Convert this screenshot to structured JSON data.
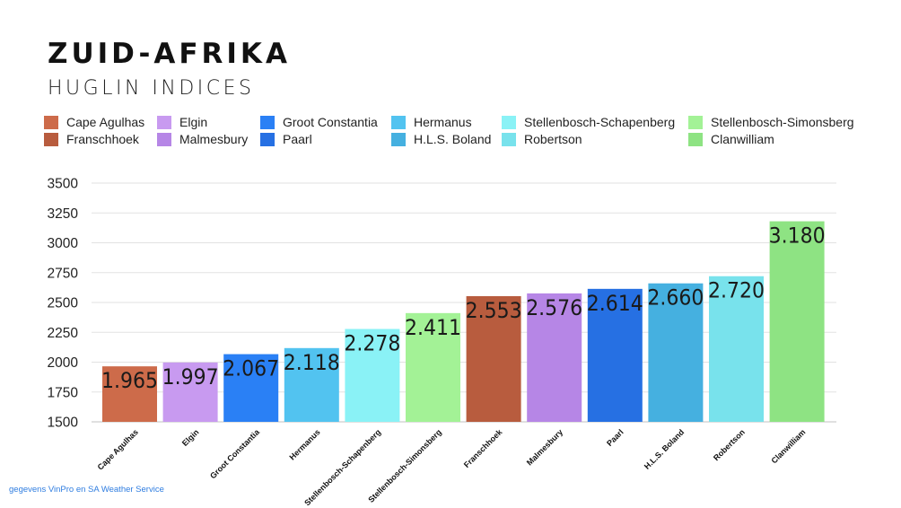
{
  "header": {
    "title": "ZUID-AFRIKA",
    "subtitle": "HUGLIN INDICES"
  },
  "legend": [
    {
      "label": "Cape Agulhas",
      "color": "#cd6b4a"
    },
    {
      "label": "Franschhoek",
      "color": "#b85c3e"
    },
    {
      "label": "Elgin",
      "color": "#c89af0"
    },
    {
      "label": "Malmesbury",
      "color": "#b686e6"
    },
    {
      "label": "Groot Constantia",
      "color": "#2a80f5"
    },
    {
      "label": "Paarl",
      "color": "#2670e3"
    },
    {
      "label": "Hermanus",
      "color": "#52c3f0"
    },
    {
      "label": "H.L.S. Boland",
      "color": "#45b0e0"
    },
    {
      "label": "Stellenbosch-Schapenberg",
      "color": "#8af2f6"
    },
    {
      "label": "Robertson",
      "color": "#78e2ec"
    },
    {
      "label": "Stellenbosch-Simonsberg",
      "color": "#a3f296"
    },
    {
      "label": "Clanwilliam",
      "color": "#8ee383"
    }
  ],
  "chart_data": {
    "type": "bar",
    "title": "ZUID-AFRIKA",
    "subtitle": "HUGLIN INDICES",
    "xlabel": "",
    "ylabel": "",
    "ylim": [
      1500,
      3500
    ],
    "yticks": [
      1500,
      1750,
      2000,
      2250,
      2500,
      2750,
      3000,
      3250,
      3500
    ],
    "ytick_labels": [
      "1500",
      "1750",
      "2000",
      "2250",
      "2500",
      "2750",
      "3000",
      "3250",
      "3500"
    ],
    "grid": true,
    "legend_position": "top",
    "categories": [
      "Cape Agulhas",
      "Elgin",
      "Groot Constantia",
      "Hermanus",
      "Stellenbosch-Schapenberg",
      "Stellenbosch-Simonsberg",
      "Franschhoek",
      "Malmesbury",
      "Paarl",
      "H.L.S. Boland",
      "Robertson",
      "Clanwilliam"
    ],
    "values": [
      1965,
      1997,
      2067,
      2118,
      2278,
      2411,
      2553,
      2576,
      2614,
      2660,
      2720,
      3180
    ],
    "data_labels": [
      "1.965",
      "1.997",
      "2.067",
      "2.118",
      "2.278",
      "2.411",
      "2.553",
      "2.576",
      "2.614",
      "2.660",
      "2.720",
      "3.180"
    ],
    "colors": [
      "#cd6b4a",
      "#c89af0",
      "#2a80f5",
      "#52c3f0",
      "#8af2f6",
      "#a3f296",
      "#b85c3e",
      "#b686e6",
      "#2670e3",
      "#45b0e0",
      "#78e2ec",
      "#8ee383"
    ]
  },
  "footer": {
    "source": "gegevens VinPro en SA Weather Service"
  }
}
